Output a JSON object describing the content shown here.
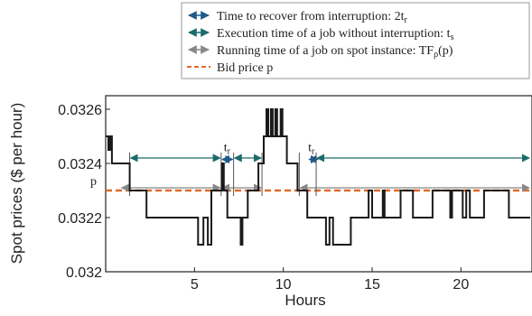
{
  "chart_data": {
    "type": "line",
    "xlabel": "Hours",
    "ylabel": "Spot prices ($ per hour)",
    "xlim": [
      0,
      24
    ],
    "ylim": [
      0.032,
      0.03265
    ],
    "xticks": [
      {
        "value": 5,
        "label": "5"
      },
      {
        "value": 10,
        "label": "10"
      },
      {
        "value": 15,
        "label": "15"
      },
      {
        "value": 20,
        "label": "20"
      }
    ],
    "yticks": [
      {
        "value": 0.032,
        "label": "0.032"
      },
      {
        "value": 0.0322,
        "label": "0.0322"
      },
      {
        "value": 0.0324,
        "label": "0.0324"
      },
      {
        "value": 0.0326,
        "label": "0.0326"
      }
    ],
    "bid_price": {
      "value": 0.0323,
      "label": "p",
      "color": "#e06a2a"
    },
    "series": [
      {
        "color": "#1a1a1a",
        "points": [
          [
            0,
            0.0325
          ],
          [
            0.15,
            0.0325
          ],
          [
            0.15,
            0.03245
          ],
          [
            0.25,
            0.03245
          ],
          [
            0.25,
            0.0325
          ],
          [
            0.35,
            0.0325
          ],
          [
            0.35,
            0.0324
          ],
          [
            1.35,
            0.0324
          ],
          [
            1.35,
            0.0323
          ],
          [
            2.3,
            0.0323
          ],
          [
            2.3,
            0.0322
          ],
          [
            4.0,
            0.0322
          ],
          [
            4.0,
            0.0322
          ],
          [
            5.2,
            0.0322
          ],
          [
            5.2,
            0.0321
          ],
          [
            5.5,
            0.0321
          ],
          [
            5.5,
            0.0322
          ],
          [
            5.75,
            0.0322
          ],
          [
            5.75,
            0.0321
          ],
          [
            5.95,
            0.0321
          ],
          [
            5.95,
            0.0323
          ],
          [
            6.55,
            0.0323
          ],
          [
            6.55,
            0.0324
          ],
          [
            6.65,
            0.0324
          ],
          [
            6.65,
            0.0323
          ],
          [
            6.85,
            0.0323
          ],
          [
            6.85,
            0.0322
          ],
          [
            7.6,
            0.0322
          ],
          [
            7.6,
            0.0321
          ],
          [
            7.7,
            0.0321
          ],
          [
            7.7,
            0.0322
          ],
          [
            8.0,
            0.0322
          ],
          [
            8.0,
            0.0323
          ],
          [
            8.6,
            0.0323
          ],
          [
            8.6,
            0.0324
          ],
          [
            8.9,
            0.0324
          ],
          [
            8.9,
            0.0325
          ],
          [
            9.05,
            0.0325
          ],
          [
            9.05,
            0.0326
          ],
          [
            9.15,
            0.0326
          ],
          [
            9.15,
            0.0325
          ],
          [
            9.3,
            0.0325
          ],
          [
            9.3,
            0.0326
          ],
          [
            9.4,
            0.0326
          ],
          [
            9.4,
            0.0325
          ],
          [
            9.55,
            0.0325
          ],
          [
            9.55,
            0.0326
          ],
          [
            9.65,
            0.0326
          ],
          [
            9.65,
            0.0325
          ],
          [
            9.85,
            0.0325
          ],
          [
            9.85,
            0.0326
          ],
          [
            9.95,
            0.0326
          ],
          [
            9.95,
            0.0325
          ],
          [
            10.2,
            0.0325
          ],
          [
            10.2,
            0.0324
          ],
          [
            10.8,
            0.0324
          ],
          [
            10.8,
            0.0323
          ],
          [
            11.35,
            0.0323
          ],
          [
            11.35,
            0.0322
          ],
          [
            12.4,
            0.0322
          ],
          [
            12.4,
            0.0321
          ],
          [
            12.6,
            0.0321
          ],
          [
            12.6,
            0.0322
          ],
          [
            12.8,
            0.0322
          ],
          [
            12.8,
            0.0321
          ],
          [
            13.8,
            0.0321
          ],
          [
            13.8,
            0.0322
          ],
          [
            14.8,
            0.0322
          ],
          [
            14.8,
            0.0323
          ],
          [
            15.0,
            0.0323
          ],
          [
            15.0,
            0.0322
          ],
          [
            15.6,
            0.0322
          ],
          [
            15.6,
            0.0323
          ],
          [
            15.7,
            0.0323
          ],
          [
            15.7,
            0.0322
          ],
          [
            16.6,
            0.0322
          ],
          [
            16.6,
            0.0323
          ],
          [
            17.3,
            0.0323
          ],
          [
            17.3,
            0.0322
          ],
          [
            18.4,
            0.0322
          ],
          [
            18.4,
            0.0323
          ],
          [
            19.4,
            0.0323
          ],
          [
            19.4,
            0.0322
          ],
          [
            19.5,
            0.0322
          ],
          [
            19.5,
            0.0323
          ],
          [
            20.1,
            0.0323
          ],
          [
            20.1,
            0.0322
          ],
          [
            20.3,
            0.0322
          ],
          [
            20.3,
            0.0323
          ],
          [
            20.5,
            0.0323
          ],
          [
            20.5,
            0.0322
          ],
          [
            21.3,
            0.0322
          ],
          [
            21.3,
            0.0323
          ],
          [
            22.7,
            0.0323
          ],
          [
            22.7,
            0.0322
          ],
          [
            23.9,
            0.0322
          ]
        ]
      }
    ],
    "intervals": [
      {
        "kind": "running",
        "start": 0.85,
        "end": 6.5,
        "color": "#888888"
      },
      {
        "kind": "execution",
        "start": 1.35,
        "end": 6.5,
        "color": "#1d6b6b"
      },
      {
        "kind": "recover",
        "start": 6.5,
        "end": 7.2,
        "color": "#1f5a8a"
      },
      {
        "kind": "running",
        "start": 6.5,
        "end": 8.8,
        "color": "#888888"
      },
      {
        "kind": "execution",
        "start": 7.2,
        "end": 8.8,
        "color": "#1d6b6b"
      },
      {
        "kind": "running",
        "start": 10.9,
        "end": 23.9,
        "color": "#888888"
      },
      {
        "kind": "recover",
        "start": 11.4,
        "end": 12.0,
        "color": "#1f5a8a"
      },
      {
        "kind": "execution",
        "start": 11.85,
        "end": 23.9,
        "color": "#1d6b6b"
      }
    ],
    "tr_labels": [
      {
        "x": 6.85,
        "label": "t",
        "sub": "r"
      },
      {
        "x": 11.6,
        "label": "t",
        "sub": "r"
      }
    ],
    "legend": {
      "placement": "top-right",
      "entries": [
        {
          "kind": "recover",
          "color": "#1f5a8a",
          "style": "double-arrow",
          "text": "Time to recover from interruption: 2t",
          "sub": "r"
        },
        {
          "kind": "execution",
          "color": "#1d6b6b",
          "style": "double-arrow",
          "text": "Execution time of a job without interruption: t",
          "sub": "s"
        },
        {
          "kind": "running",
          "color": "#888888",
          "style": "double-arrow",
          "text": "Running time of a job on spot instance: TF",
          "sub": "ρ",
          "suffix": "(p)"
        },
        {
          "kind": "bid",
          "color": "#e06a2a",
          "style": "dashed",
          "text": "Bid price p",
          "sub": ""
        }
      ]
    },
    "grid": false
  }
}
